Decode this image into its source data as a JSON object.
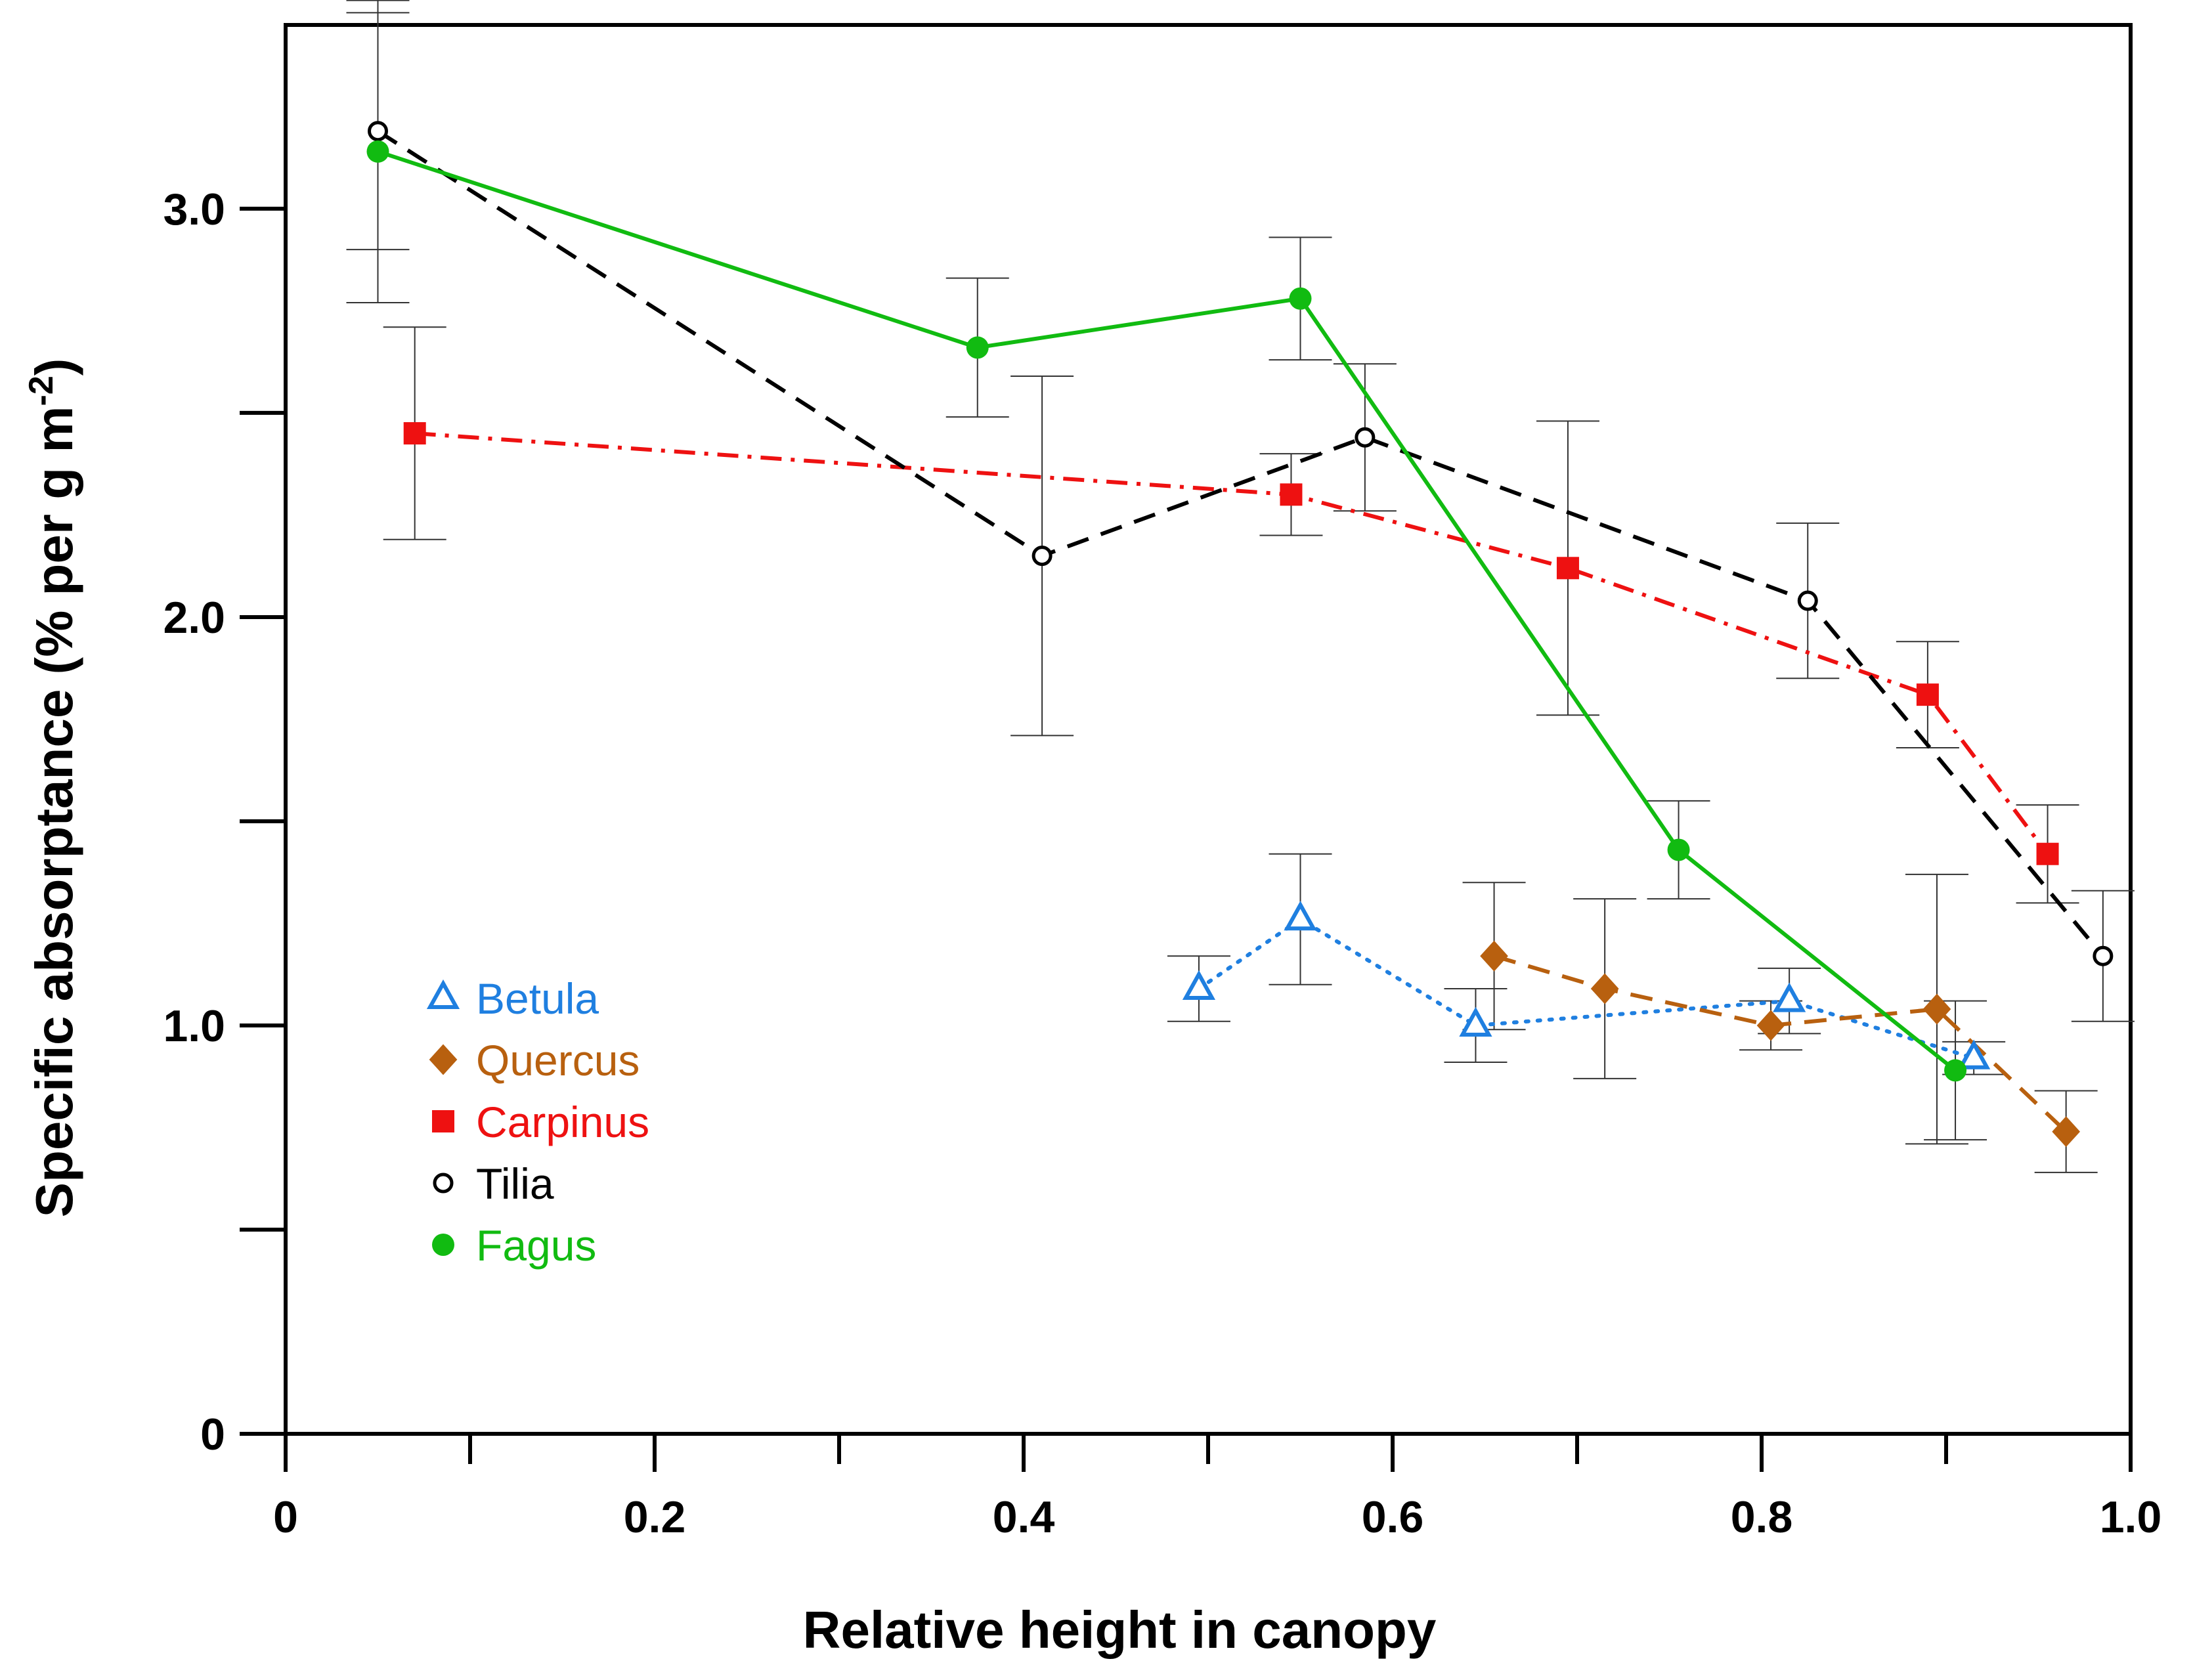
{
  "chart_data": {
    "type": "line",
    "title": "",
    "xlabel": "Relative height in canopy",
    "ylabel_main": "Specific absorptance (% per g m",
    "ylabel_sup": "-2",
    "ylabel_close": ")",
    "xlim": [
      0,
      1.0
    ],
    "ylim": [
      0,
      3.45
    ],
    "x_ticks": [
      0,
      0.2,
      0.4,
      0.6,
      0.8,
      1.0
    ],
    "x_tick_labels": [
      "0",
      "0.2",
      "0.4",
      "0.6",
      "0.8",
      "1.0"
    ],
    "x_minor_ticks": [
      0.1,
      0.3,
      0.5,
      0.7,
      0.9
    ],
    "y_labeled_ticks": [
      0,
      1.0,
      2.0,
      3.0
    ],
    "y_tick_labels": [
      "0",
      "1.0",
      "2.0",
      "3.0"
    ],
    "y_minor_ticks": [
      0.5,
      1.5,
      2.5
    ],
    "legend_position": "lower-left",
    "series": [
      {
        "name": "Betula",
        "color": "#1f7fe0",
        "marker": "triangle-open",
        "line": "dotted",
        "x": [
          0.495,
          0.55,
          0.645,
          0.815,
          0.915
        ],
        "y": [
          1.09,
          1.26,
          1.0,
          1.06,
          0.92
        ],
        "err": [
          0.08,
          0.16,
          0.09,
          0.08,
          0.04
        ]
      },
      {
        "name": "Quercus",
        "color": "#b8600f",
        "marker": "diamond",
        "line": "dashed",
        "x": [
          0.655,
          0.715,
          0.805,
          0.895,
          0.965
        ],
        "y": [
          1.17,
          1.09,
          1.0,
          1.04,
          0.74
        ],
        "err": [
          0.18,
          0.22,
          0.06,
          0.33,
          0.1
        ]
      },
      {
        "name": "Carpinus",
        "color": "#ee1111",
        "marker": "square",
        "line": "dashdot",
        "x": [
          0.07,
          0.545,
          0.695,
          0.89,
          0.955
        ],
        "y": [
          2.45,
          2.3,
          2.12,
          1.81,
          1.42
        ],
        "err": [
          0.26,
          0.1,
          0.36,
          0.13,
          0.12
        ]
      },
      {
        "name": "Tilia",
        "color": "#000000",
        "marker": "circle-open",
        "line": "dashed",
        "x": [
          0.05,
          0.41,
          0.585,
          0.825,
          0.985
        ],
        "y": [
          3.19,
          2.15,
          2.44,
          2.04,
          1.17
        ],
        "err": [
          0.29,
          0.44,
          0.18,
          0.19,
          0.16
        ]
      },
      {
        "name": "Fagus",
        "color": "#11bb11",
        "marker": "circle",
        "line": "solid",
        "x": [
          0.05,
          0.375,
          0.55,
          0.755,
          0.905
        ],
        "y": [
          3.14,
          2.66,
          2.78,
          1.43,
          0.89
        ],
        "err": [
          0.37,
          0.17,
          0.15,
          0.12,
          0.17
        ]
      }
    ]
  }
}
